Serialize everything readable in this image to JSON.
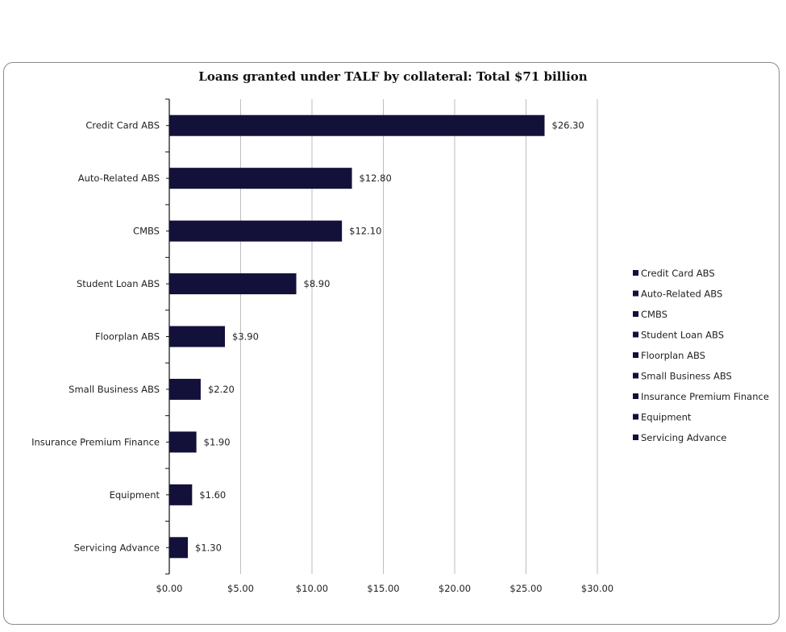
{
  "chart_data": {
    "type": "bar",
    "orientation": "horizontal",
    "title": "Loans granted under TALF by collateral: Total $71 billion",
    "categories": [
      "Credit Card ABS",
      "Auto-Related ABS",
      "CMBS",
      "Student Loan ABS",
      "Floorplan ABS",
      "Small Business ABS",
      "Insurance Premium Finance",
      "Equipment",
      "Servicing Advance"
    ],
    "values": [
      26.3,
      12.8,
      12.1,
      8.9,
      3.9,
      2.2,
      1.9,
      1.6,
      1.3
    ],
    "data_labels": [
      "$26.30",
      "$12.80",
      "$12.10",
      "$8.90",
      "$3.90",
      "$2.20",
      "$1.90",
      "$1.60",
      "$1.30"
    ],
    "xlim": [
      0,
      30
    ],
    "xticks": [
      0,
      5,
      10,
      15,
      20,
      25,
      30
    ],
    "xtick_labels": [
      "$0.00",
      "$5.00",
      "$10.00",
      "$15.00",
      "$20.00",
      "$25.00",
      "$30.00"
    ],
    "xlabel": "",
    "ylabel": "",
    "grid": "vertical",
    "legend": {
      "placement": "right",
      "entries": [
        "Credit Card ABS",
        "Auto-Related ABS",
        "CMBS",
        "Student Loan ABS",
        "Floorplan ABS",
        "Small Business ABS",
        "Insurance Premium Finance",
        "Equipment",
        "Servicing Advance"
      ]
    },
    "bar_color": "#13113a"
  }
}
